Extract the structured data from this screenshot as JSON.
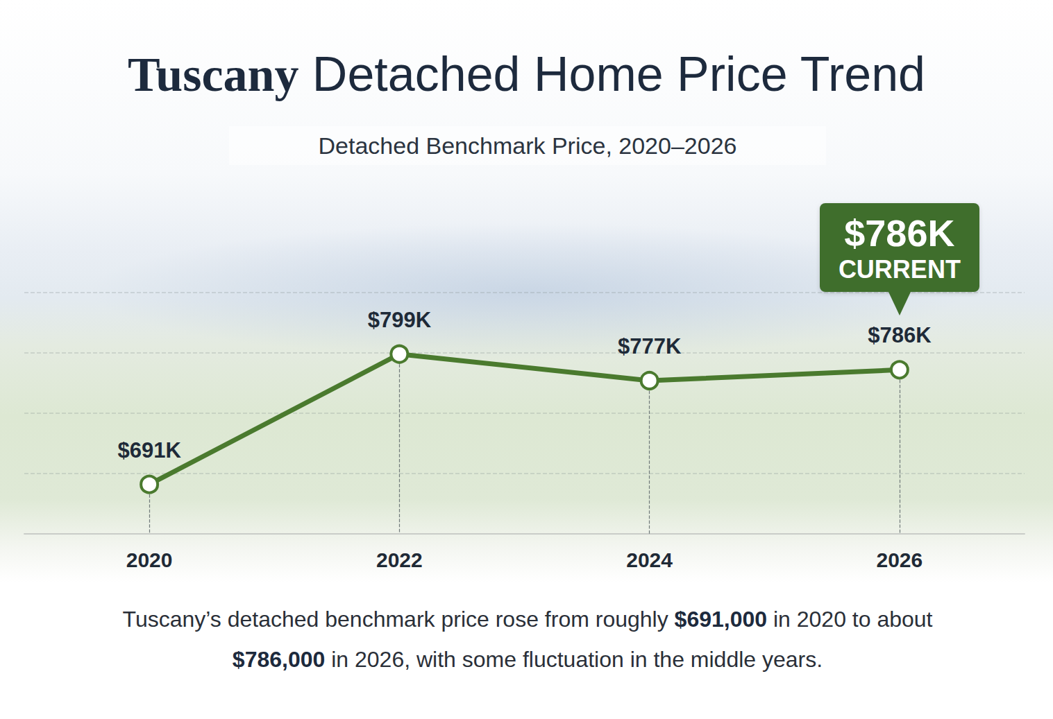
{
  "chart_data": {
    "type": "line",
    "title": "Tuscany Detached Home Price Trend",
    "subtitle": "Detached Benchmark Price, 2020–2026",
    "categories": [
      "2020",
      "2022",
      "2024",
      "2026"
    ],
    "values": [
      691000,
      799000,
      777000,
      786000
    ],
    "value_labels": [
      "$691K",
      "$799K",
      "$777K",
      "$786K"
    ],
    "data_labels": true,
    "color": "#4a7a2e",
    "marker": "circle",
    "line_style": "solid",
    "ylim": [
      650000,
      850000
    ],
    "yticks": [
      650000,
      700000,
      750000,
      800000,
      850000
    ],
    "grid": true,
    "tick_labels": "x",
    "annotation": {
      "x": "2026",
      "y": 786000,
      "label": "$786K",
      "text": "CURRENT"
    },
    "caption": [
      "Tuscany’s detached benchmark price rose from roughly ",
      "$691,000",
      " in 2020 to about ",
      "$786,000",
      " in 2026, with some fluctuation in the middle years."
    ]
  }
}
